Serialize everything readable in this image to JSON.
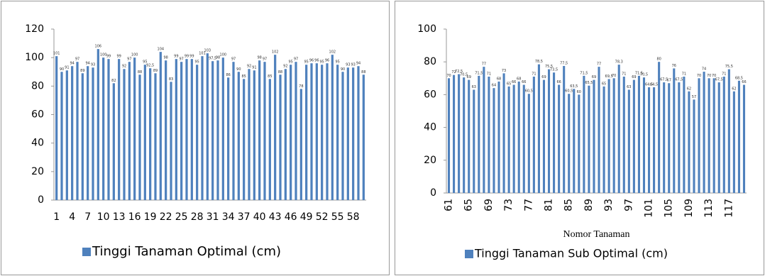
{
  "chart_data": [
    {
      "type": "bar",
      "categories": [
        "1",
        null,
        null,
        "4",
        null,
        null,
        "7",
        null,
        null,
        "10",
        null,
        null,
        "13",
        null,
        null,
        "16",
        null,
        null,
        "19",
        null,
        null,
        "22",
        null,
        null,
        "25",
        null,
        null,
        "28",
        null,
        null,
        "31",
        null,
        null,
        "34",
        null,
        null,
        "37",
        null,
        null,
        "40",
        null,
        null,
        "43",
        null,
        null,
        "46",
        null,
        null,
        "49",
        null,
        null,
        "52",
        null,
        null,
        "55",
        null,
        null,
        "58",
        null,
        null
      ],
      "series": [
        {
          "name": "Tinggi Tanaman Optimal (cm)",
          "color": "#4f81bd",
          "values": [
            101,
            90,
            91,
            94,
            97,
            89,
            94,
            93,
            106,
            100,
            99,
            82,
            99,
            92,
            97,
            100,
            88,
            95,
            92.5,
            89,
            104,
            98,
            83,
            99,
            97,
            99,
            99,
            95,
            101,
            103,
            97.5,
            98,
            100,
            86,
            97,
            90,
            85,
            92,
            91,
            98,
            97,
            85,
            102,
            88,
            92,
            95,
            97,
            78,
            95,
            96,
            96,
            95,
            96,
            102,
            95,
            90,
            93,
            93,
            94,
            88
          ],
          "value_labels": [
            "101",
            "90",
            "91",
            "94",
            "97",
            "89",
            "94",
            "93",
            "106",
            "100",
            "99",
            "82",
            "99",
            "92",
            "97",
            "100",
            "88",
            "95",
            "92,5",
            "89",
            "104",
            "98",
            "83",
            "99",
            "97",
            "99",
            "99",
            "95",
            "101",
            "103",
            "97,5",
            "98",
            "100",
            "86",
            "97",
            "90",
            "85",
            "92",
            "91",
            "98",
            "97",
            "85",
            "102",
            "88",
            "92",
            "95",
            "97",
            "78",
            "95",
            "96",
            "96",
            "95",
            "96",
            "102",
            "95",
            "90",
            "93",
            "93",
            "94",
            "88"
          ]
        }
      ],
      "ylim": [
        0,
        120
      ],
      "yticks": [
        0,
        20,
        40,
        60,
        80,
        100,
        120
      ],
      "legend": "bottom"
    },
    {
      "type": "bar",
      "x_label": "Nomor Tanaman",
      "categories": [
        "61",
        null,
        null,
        null,
        "65",
        null,
        null,
        null,
        "69",
        null,
        null,
        null,
        "73",
        null,
        null,
        null,
        "77",
        null,
        null,
        null,
        "81",
        null,
        null,
        null,
        "85",
        null,
        null,
        null,
        "89",
        null,
        null,
        null,
        "93",
        null,
        null,
        null,
        "97",
        null,
        null,
        null,
        "101",
        null,
        null,
        null,
        "105",
        null,
        null,
        null,
        "109",
        null,
        null,
        null,
        "113",
        null,
        null,
        null,
        "117",
        null,
        null,
        null
      ],
      "series": [
        {
          "name": "Tinggi Tanaman Sub Optimal (cm)",
          "color": "#4f81bd",
          "values": [
            70,
            72,
            72.5,
            70.5,
            69,
            63,
            71.5,
            77,
            71,
            64,
            68,
            73,
            65,
            66,
            68,
            66,
            60.5,
            71,
            78.5,
            69,
            75.5,
            73.5,
            66,
            77.5,
            60.5,
            63.5,
            60,
            71.5,
            65.5,
            69,
            77,
            65,
            69.5,
            70,
            78.3,
            71,
            63,
            69,
            71.5,
            70.5,
            64.5,
            64.5,
            80,
            67.5,
            67,
            76,
            67.5,
            71,
            62,
            57,
            70,
            74,
            70,
            70,
            67.5,
            71,
            75.5,
            62,
            68.5,
            66
          ],
          "value_labels": [
            "70",
            "72",
            "72,5",
            "70,5",
            "69",
            "63",
            "71,5",
            "77",
            "71",
            "64",
            "68",
            "73",
            "65",
            "66",
            "68",
            "66",
            "60,5",
            "71",
            "78,5",
            "69",
            "75,5",
            "73,5",
            "66",
            "77,5",
            "60,5",
            "63,5",
            "60",
            "71,5",
            "65,5",
            "69",
            "77",
            "65",
            "69,5",
            "70",
            "78,3",
            "71",
            "63",
            "69",
            "71,5",
            "70,5",
            "64,5",
            "64,5",
            "80",
            "67,5",
            "67",
            "76",
            "67,5",
            "71",
            "62",
            "57",
            "70",
            "74",
            "70",
            "70",
            "67,5",
            "71",
            "75,5",
            "62",
            "68,5",
            "66"
          ]
        }
      ],
      "ylim": [
        0,
        100
      ],
      "yticks": [
        0,
        20,
        40,
        60,
        80,
        100
      ],
      "legend": "bottom"
    }
  ]
}
